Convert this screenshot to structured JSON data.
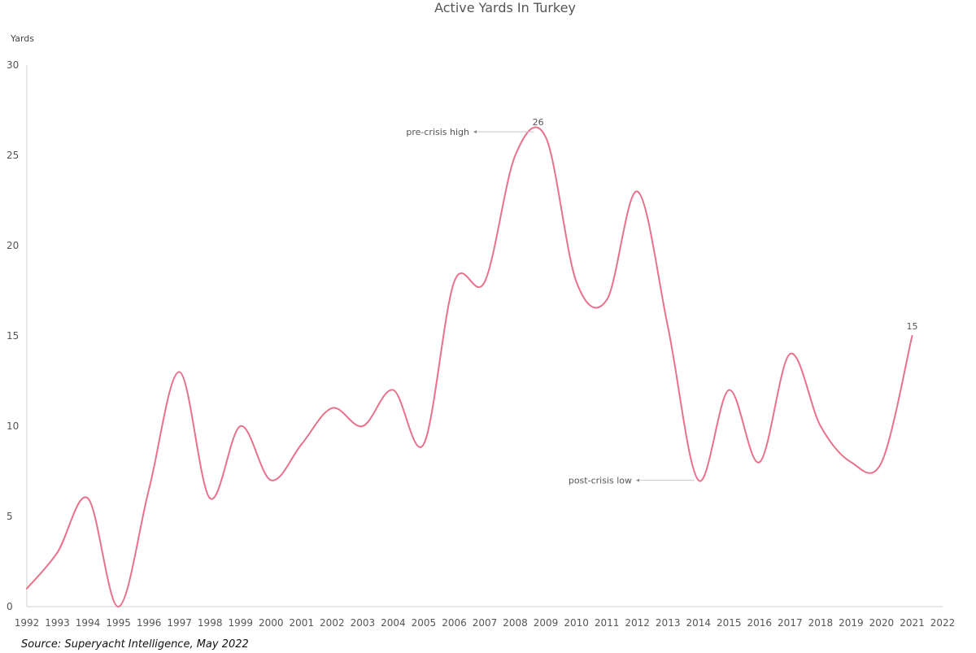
{
  "chart_data": {
    "type": "line",
    "title": "Active Yards In Turkey",
    "ylabel": "Yards",
    "xlabel": "",
    "x": [
      1992,
      1993,
      1994,
      1995,
      1996,
      1997,
      1998,
      1999,
      2000,
      2001,
      2002,
      2003,
      2004,
      2005,
      2006,
      2007,
      2008,
      2009,
      2010,
      2011,
      2012,
      2013,
      2014,
      2015,
      2016,
      2017,
      2018,
      2019,
      2020,
      2021
    ],
    "series": [
      {
        "values": [
          1,
          3,
          6,
          0,
          6.5,
          13,
          6,
          10,
          7,
          9,
          11,
          10,
          12,
          9,
          18,
          18,
          25,
          26,
          18,
          17,
          23,
          15.5,
          7,
          12,
          8,
          14,
          10,
          8,
          8,
          15
        ],
        "color": "#e8718c"
      }
    ],
    "xticks": [
      "1992",
      "1993",
      "1994",
      "1995",
      "1996",
      "1997",
      "1998",
      "1999",
      "2000",
      "2001",
      "2002",
      "2003",
      "2004",
      "2005",
      "2006",
      "2007",
      "2008",
      "2009",
      "2010",
      "2011",
      "2012",
      "2013",
      "2014",
      "2015",
      "2016",
      "2017",
      "2018",
      "2019",
      "2020",
      "2021",
      "2022"
    ],
    "yticks": [
      "0",
      "5",
      "10",
      "15",
      "20",
      "25",
      "30"
    ],
    "xlim": [
      1992,
      2022
    ],
    "ylim": [
      0,
      30
    ],
    "grid": false,
    "legend": "none",
    "annotations": [
      {
        "text": "pre-crisis high",
        "year": 2008.75,
        "value": 26.3
      },
      {
        "text": "post-crisis low",
        "year": 2014,
        "value": 7
      }
    ],
    "data_labels": [
      {
        "text": "26",
        "year": 2008.75,
        "value": 26.3
      },
      {
        "text": "15",
        "year": 2021,
        "value": 15
      }
    ],
    "source": "Source: Superyacht Intelligence, May 2022"
  }
}
